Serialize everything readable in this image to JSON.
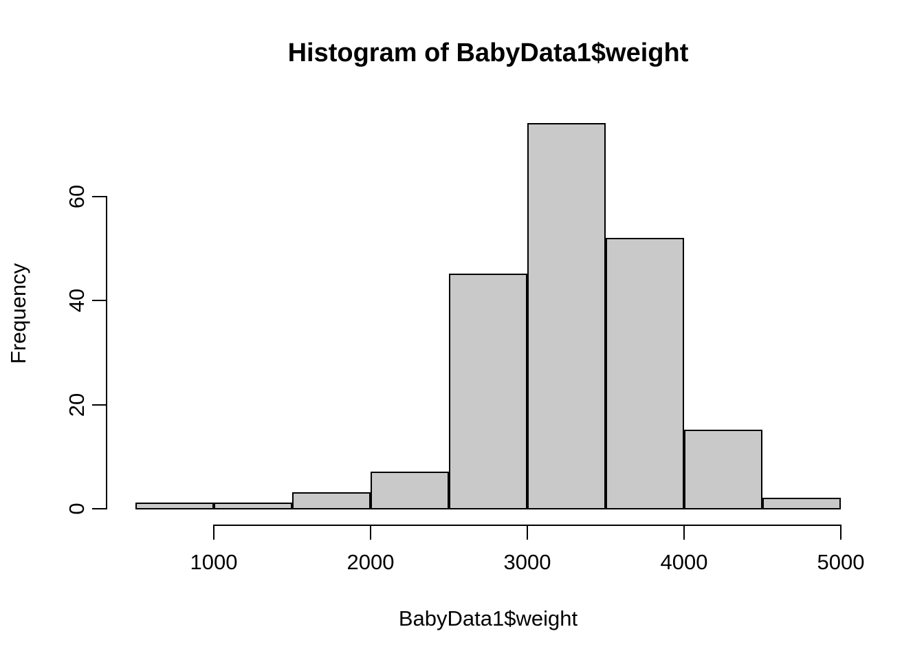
{
  "chart_data": {
    "type": "bar",
    "subtype": "histogram",
    "title": "Histogram of BabyData1$weight",
    "xlabel": "BabyData1$weight",
    "ylabel": "Frequency",
    "bin_edges": [
      500,
      1000,
      1500,
      2000,
      2500,
      3000,
      3500,
      4000,
      4500,
      5000
    ],
    "counts": [
      1,
      1,
      3,
      7,
      45,
      74,
      52,
      15,
      2
    ],
    "total_observations": 200,
    "x_ticks": [
      1000,
      2000,
      3000,
      4000,
      5000
    ],
    "x_tick_labels": [
      "1000",
      "2000",
      "3000",
      "4000",
      "5000"
    ],
    "y_ticks": [
      0,
      20,
      40,
      60
    ],
    "y_tick_labels": [
      "0",
      "20",
      "40",
      "60"
    ],
    "xlim": [
      500,
      5000
    ],
    "ylim": [
      0,
      74
    ],
    "grid": false,
    "legend": false,
    "colors": {
      "bar_fill": "#c9c9c9",
      "bar_border": "#000000",
      "axis": "#000000",
      "text": "#000000",
      "background": "#ffffff"
    }
  }
}
